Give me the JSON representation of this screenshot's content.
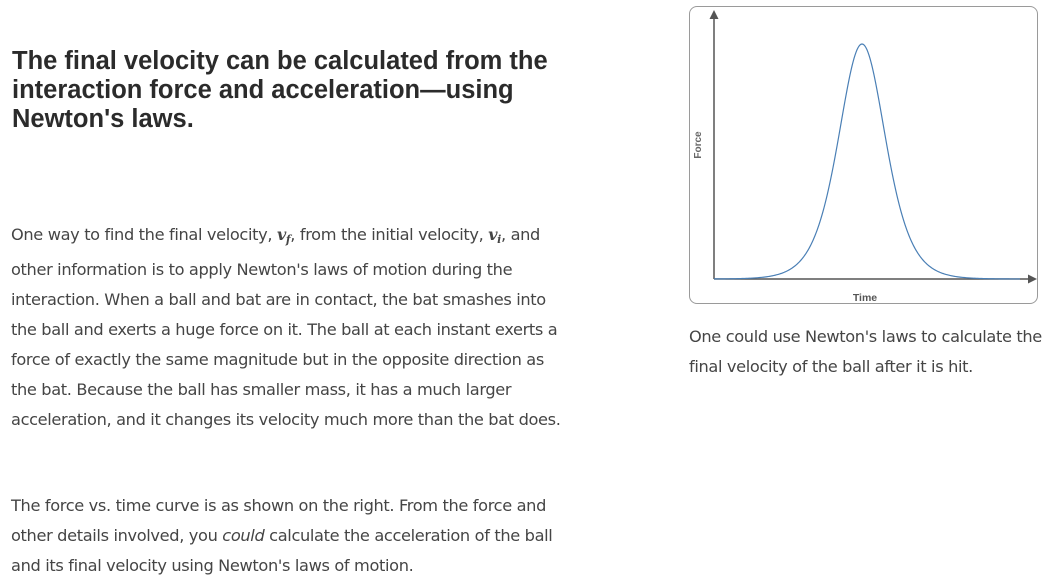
{
  "heading": "The final velocity can be calculated from the interaction force and acceleration—using Newton's laws.",
  "para1": {
    "part1": "One way to find the final velocity, ",
    "vf_main": "v",
    "vf_sub": "f",
    "part2": ", from the initial velocity, ",
    "vi_main": "v",
    "vi_sub": "i",
    "part3": ", and other information is to apply Newton's laws of motion during the interaction. When a ball and bat are in contact, the bat smashes into the ball and exerts a huge force on it. The ball at each instant exerts a force of exactly the same magnitude but in the opposite direction as the bat. Because the ball has smaller mass, it has a much larger acceleration, and it changes its velocity much more than the bat does."
  },
  "para2": {
    "part1": "The force vs. time curve is as shown on the right. From the force and other details involved, you ",
    "emphasis": "could",
    "part2": " calculate the acceleration of the ball and its final velocity using Newton's laws of motion."
  },
  "figure": {
    "x_axis_label": "Time",
    "y_axis_label": "Force",
    "curve_color": "#4a7fb5",
    "axis_color": "#555555"
  },
  "caption": "One could use Newton's laws to calculate the final velocity of the ball after it is hit."
}
